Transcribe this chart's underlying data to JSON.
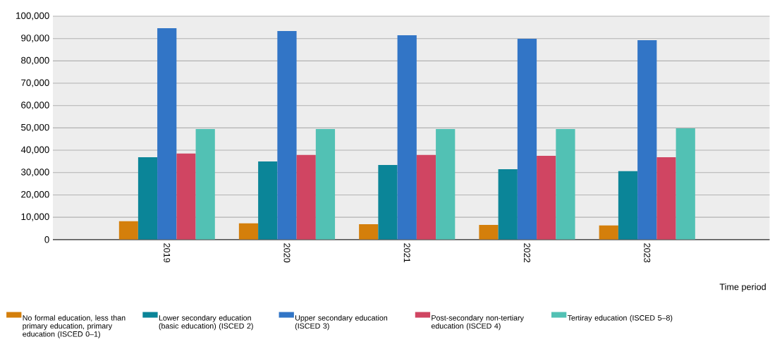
{
  "chart_data": {
    "type": "bar",
    "categories": [
      "2019",
      "2020",
      "2021",
      "2022",
      "2023"
    ],
    "xlabel": "Time period",
    "series": [
      {
        "name": "No formal education, less than primary education, primary education (ISCED 0–1)",
        "color": "#d47f0b",
        "values": [
          8200,
          7300,
          6900,
          6600,
          6300
        ]
      },
      {
        "name": "Lower secondary education (basic education) (ISCED 2)",
        "color": "#0b8598",
        "values": [
          36900,
          35000,
          33400,
          31500,
          30600
        ]
      },
      {
        "name": "Upper secondary education (ISCED 3)",
        "color": "#3275c6",
        "values": [
          94600,
          93400,
          91500,
          89900,
          89300
        ]
      },
      {
        "name": "Post-secondary non-tertiary education (ISCED 4)",
        "color": "#d04562",
        "values": [
          38500,
          37900,
          37900,
          37500,
          36900
        ]
      },
      {
        "name": "Tertiray education (ISCED 5–8)",
        "color": "#52c1b4",
        "values": [
          49500,
          49500,
          49500,
          49500,
          49800
        ]
      }
    ],
    "ylim": [
      0,
      100000
    ],
    "yticks": [
      {
        "value": 0,
        "label": "0"
      },
      {
        "value": 10000,
        "label": "10,000"
      },
      {
        "value": 20000,
        "label": "20,000"
      },
      {
        "value": 30000,
        "label": "30,000"
      },
      {
        "value": 40000,
        "label": "40,000"
      },
      {
        "value": 50000,
        "label": "50,000"
      },
      {
        "value": 60000,
        "label": "60,000"
      },
      {
        "value": 70000,
        "label": "70,000"
      },
      {
        "value": 80000,
        "label": "80,000"
      },
      {
        "value": 90000,
        "label": "90,000"
      },
      {
        "value": 100000,
        "label": "100,000"
      }
    ],
    "grid": "y",
    "legend": "bottom"
  }
}
